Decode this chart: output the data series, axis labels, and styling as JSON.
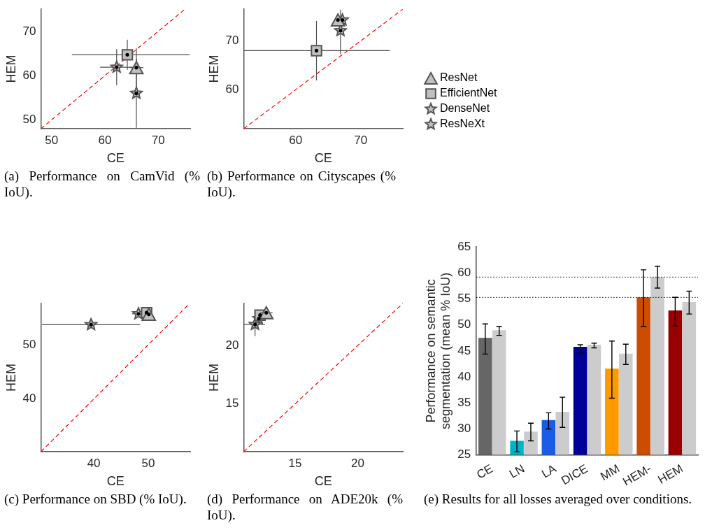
{
  "chart_data": [
    {
      "type": "scatter",
      "title": "(a) Performance on CamVid (% IoU).",
      "xlabel": "CE",
      "ylabel": "HEM",
      "xlim": [
        48,
        76
      ],
      "ylim": [
        48,
        75
      ],
      "xticks": [
        50,
        60,
        70
      ],
      "yticks": [
        50,
        60,
        70
      ],
      "series": [
        {
          "type": "line",
          "x": [
            48,
            75
          ],
          "values": [
            48,
            75
          ],
          "color": "#ff0000",
          "line_style": "dashed"
        },
        {
          "color": "#c0c0c0",
          "marker": "triangle",
          "x": [
            65.9
          ],
          "values": [
            61.8
          ],
          "errors": [
            [
              57.5,
              66.2
            ]
          ],
          "xerrors": [
            [
              64.6,
              67.2
            ]
          ]
        },
        {
          "color": "#c0c0c0",
          "marker": "square",
          "x": [
            64.2
          ],
          "values": [
            64.7
          ],
          "errors": [
            [
              61.3,
              68.1
            ]
          ],
          "xerrors": [
            [
              53.8,
              75.9
            ]
          ]
        },
        {
          "color": "#c0c0c0",
          "marker": "star",
          "x": [
            65.9
          ],
          "values": [
            56.0
          ],
          "errors": [
            [
              48.2,
              63.8
            ]
          ]
        },
        {
          "color": "#c0c0c0",
          "marker": "star",
          "x": [
            62.2
          ],
          "values": [
            61.9
          ],
          "errors": [
            [
              57.8,
              66.0
            ]
          ],
          "xerrors": [
            [
              59.1,
              65.3
            ]
          ]
        }
      ]
    },
    {
      "type": "scatter",
      "title": "(b) Performance on Cityscapes (% IoU).",
      "xlabel": "CE",
      "ylabel": "HEM",
      "xlim": [
        52,
        76.5
      ],
      "ylim": [
        52,
        76.5
      ],
      "xticks": [
        60,
        70
      ],
      "yticks": [
        60,
        70
      ],
      "legend": "right",
      "series": [
        {
          "type": "line",
          "x": [
            52,
            76.5
          ],
          "values": [
            52,
            76.5
          ],
          "color": "#ff0000",
          "line_style": "dashed"
        },
        {
          "name": "ResNet",
          "color": "#c0c0c0",
          "marker": "triangle",
          "x": [
            66.5
          ],
          "values": [
            74.3
          ]
        },
        {
          "name": "EfficientNet",
          "color": "#c0c0c0",
          "marker": "square",
          "x": [
            63.2
          ],
          "values": [
            68.0
          ],
          "errors": [
            [
              61.9,
              74.1
            ]
          ],
          "xerrors": [
            [
              52,
              74.5
            ]
          ]
        },
        {
          "name": "DenseNet",
          "color": "#c0c0c0",
          "marker": "star",
          "x": [
            66.9
          ],
          "values": [
            72.1
          ],
          "errors": [
            [
              67.3,
              76.4
            ]
          ]
        },
        {
          "name": "ResNeXt",
          "color": "#c0c0c0",
          "marker": "star",
          "x": [
            67.2
          ],
          "values": [
            74.3
          ]
        }
      ]
    },
    {
      "type": "scatter",
      "title": "(c) Performance on SBD (% IoU).",
      "xlabel": "CE",
      "ylabel": "HEM",
      "xlim": [
        30.3,
        57.7
      ],
      "ylim": [
        30.3,
        57.6
      ],
      "xticks": [
        40,
        50
      ],
      "yticks": [
        40,
        50
      ],
      "series": [
        {
          "type": "line",
          "x": [
            30.3,
            57.6
          ],
          "values": [
            30.3,
            57.6
          ],
          "color": "#ff0000",
          "line_style": "dashed"
        },
        {
          "color": "#c0c0c0",
          "marker": "triangle",
          "x": [
            50.1
          ],
          "values": [
            55.6
          ]
        },
        {
          "color": "#c0c0c0",
          "marker": "square",
          "x": [
            49.7
          ],
          "values": [
            55.9
          ]
        },
        {
          "color": "#c0c0c0",
          "marker": "star",
          "x": [
            48.2
          ],
          "values": [
            55.7
          ],
          "xerrors": [
            [
              47.0,
              49.4
            ]
          ]
        },
        {
          "color": "#c0c0c0",
          "marker": "star",
          "x": [
            39.5
          ],
          "values": [
            53.7
          ],
          "xerrors": [
            [
              30.5,
              48.5
            ]
          ]
        }
      ]
    },
    {
      "type": "scatter",
      "title": "(d) Performance on ADE20k (% IoU).",
      "xlabel": "CE",
      "ylabel": "HEM",
      "xlim": [
        10.9,
        23.6
      ],
      "ylim": [
        10.9,
        23.6
      ],
      "xticks": [
        15,
        20
      ],
      "yticks": [
        15,
        20
      ],
      "series": [
        {
          "type": "line",
          "x": [
            10.9,
            23.6
          ],
          "values": [
            10.9,
            23.6
          ],
          "color": "#ff0000",
          "line_style": "dashed"
        },
        {
          "color": "#c0c0c0",
          "marker": "triangle",
          "x": [
            12.7
          ],
          "values": [
            22.8
          ],
          "xerrors": [
            [
              12.2,
              13.2
            ]
          ]
        },
        {
          "color": "#c0c0c0",
          "marker": "square",
          "x": [
            12.2
          ],
          "values": [
            22.6
          ]
        },
        {
          "color": "#c0c0c0",
          "marker": "star",
          "x": [
            12.1
          ],
          "values": [
            22.3
          ]
        },
        {
          "color": "#c0c0c0",
          "marker": "star",
          "x": [
            11.8
          ],
          "values": [
            21.8
          ],
          "errors": [
            [
              20.8,
              22.4
            ]
          ],
          "xerrors": [
            [
              10.9,
              12.6
            ]
          ]
        }
      ]
    },
    {
      "type": "bar",
      "title": "(e) Results for all losses averaged over conditions.",
      "ylabel": "Performance on semantic\nsegmentation (mean % IoU)",
      "categories": [
        "CE",
        "LN",
        "LA",
        "DICE",
        "MM",
        "HEM-",
        "HEM"
      ],
      "ylim": [
        25,
        65
      ],
      "yticks": [
        25,
        30,
        35,
        40,
        45,
        50,
        55,
        60,
        65
      ],
      "series": [
        {
          "colors": [
            "#666666",
            "#00b4c8",
            "#1a5ce6",
            "#000099",
            "#ff9900",
            "#cc4c00",
            "#990000"
          ],
          "values": [
            47.5,
            27.7,
            31.7,
            45.8,
            41.6,
            55.3,
            52.8
          ],
          "errors": [
            [
              44.4,
              50.2
            ],
            [
              25.6,
              29.6
            ],
            [
              30.0,
              33.1
            ],
            [
              44.6,
              46.2
            ],
            [
              35.9,
              46.9
            ],
            [
              49.7,
              60.6
            ],
            [
              49.8,
              55.3
            ]
          ]
        },
        {
          "color": "#cccccc",
          "values": [
            49.0,
            29.5,
            33.3,
            46.2,
            44.5,
            59.2,
            54.4
          ],
          "errors": [
            [
              48.0,
              49.7
            ],
            [
              27.7,
              31.1
            ],
            [
              30.3,
              36.1
            ],
            [
              45.6,
              46.5
            ],
            [
              42.4,
              46.3
            ],
            [
              57.1,
              61.3
            ],
            [
              52.1,
              56.5
            ]
          ]
        }
      ],
      "ref_lines": [
        {
          "axis": "y",
          "value": 59.2,
          "color": "#000000",
          "line_style": "dotted"
        },
        {
          "axis": "y",
          "value": 55.3,
          "color": "#000000",
          "line_style": "dotted"
        }
      ]
    }
  ]
}
